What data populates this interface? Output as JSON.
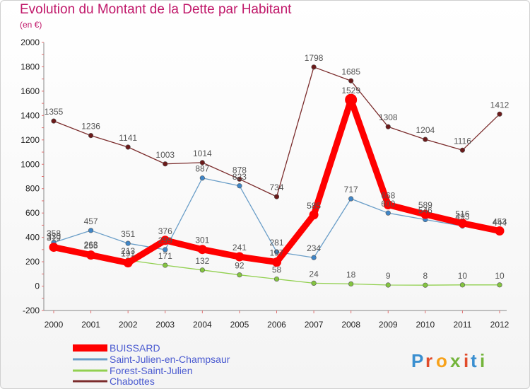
{
  "chart_data": {
    "type": "line",
    "title": "Evolution du Montant de la Dette par Habitant",
    "subtitle": "(en €)",
    "x": [
      "2000",
      "2001",
      "2002",
      "2003",
      "2004",
      "2005",
      "2006",
      "2007",
      "2008",
      "2009",
      "2010",
      "2011",
      "2012"
    ],
    "ylim": [
      -200,
      2000
    ],
    "yticks": [
      -200,
      0,
      200,
      400,
      600,
      800,
      1000,
      1200,
      1400,
      1600,
      1800,
      2000
    ],
    "grid": false,
    "legend_position": "bottom-left",
    "series": [
      {
        "name": "BUISSARD",
        "color": "#ff0000",
        "marker_color": "#ff0000",
        "values": [
          319,
          255,
          191,
          376,
          301,
          241,
          197,
          585,
          1529,
          668,
          589,
          516,
          453
        ]
      },
      {
        "name": "Saint-Julien-en-Champsaur",
        "color": "#6a9ec8",
        "marker_color": "#3f86c8",
        "values": [
          358,
          457,
          351,
          299,
          887,
          823,
          281,
          234,
          717,
          600,
          546,
          493,
          444
        ]
      },
      {
        "name": "Forest-Saint-Julien",
        "color": "#92d050",
        "marker_color": "#84c540",
        "values": [
          330,
          263,
          213,
          171,
          132,
          92,
          58,
          24,
          18,
          9,
          8,
          10,
          10
        ]
      },
      {
        "name": "Chabottes",
        "color": "#7b2c2c",
        "marker_color": "#6b1a1a",
        "values": [
          1355,
          1236,
          1141,
          1003,
          1014,
          878,
          734,
          1798,
          1685,
          1308,
          1204,
          1116,
          1412
        ]
      }
    ]
  },
  "logo": {
    "text": "Proxiti"
  }
}
